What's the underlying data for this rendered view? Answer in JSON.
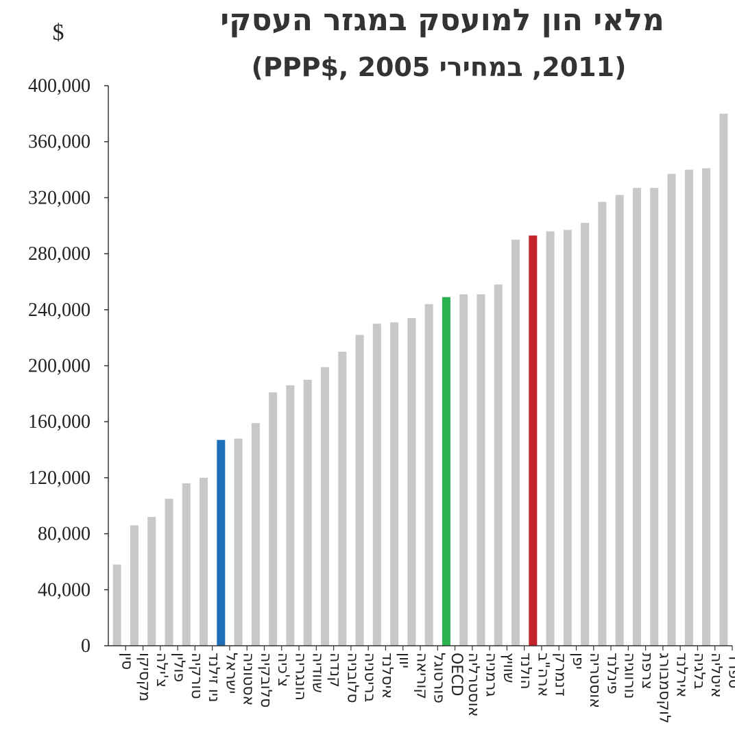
{
  "chart_data": {
    "type": "bar",
    "title": "מלאי הון למועסק במגזר העסקי",
    "subtitle": "(2011, במחירי 2005 ,$PPP)",
    "ylabel": "$",
    "xlabel": "",
    "ylim": [
      0,
      400000
    ],
    "yticks": [
      0,
      40000,
      80000,
      120000,
      160000,
      200000,
      240000,
      280000,
      320000,
      360000,
      400000
    ],
    "ytick_labels": [
      "0",
      "40,000",
      "80,000",
      "120,000",
      "160,000",
      "200,000",
      "240,000",
      "280,000",
      "320,000",
      "360,000",
      "400,000"
    ],
    "grid": false,
    "legend": "none",
    "colors": {
      "default": "#c8c8c8",
      "israel": "#1f6fb6",
      "oecd": "#2ab24f",
      "usa": "#c4232a"
    },
    "categories": [
      "סין",
      "מקסיקו",
      "צ'ילה",
      "פולין",
      "טורקיה",
      "ניו זילנד",
      "ישראל",
      "אסטוניה",
      "סלובקיה",
      "צ'כיה",
      "הונגריה",
      "שוודיה",
      "קנדה",
      "סלובניה",
      "בריטניה",
      "איסלנד",
      "יוון",
      "קוריאה",
      "פורטוגל",
      "OECD",
      "אוסטרליה",
      "גרמניה",
      "שוויץ",
      "הולנד",
      "ארה\"ב",
      "דנמרק",
      "יפן",
      "אוסטריה",
      "פינלנד",
      "נורווגיה",
      "צרפת",
      "לוקסמבורג",
      "אירלנד",
      "בלגיה",
      "איטליה",
      "ספרד"
    ],
    "values": [
      58000,
      86000,
      92000,
      105000,
      116000,
      120000,
      147000,
      148000,
      159000,
      181000,
      186000,
      190000,
      199000,
      210000,
      222000,
      230000,
      231000,
      234000,
      244000,
      249000,
      251000,
      251000,
      258000,
      290000,
      293000,
      296000,
      297000,
      302000,
      317000,
      322000,
      327000,
      327000,
      337000,
      340000,
      341000,
      380000
    ],
    "highlight": {
      "ישראל": "israel",
      "OECD": "oecd",
      "ארה\"ב": "usa"
    }
  }
}
